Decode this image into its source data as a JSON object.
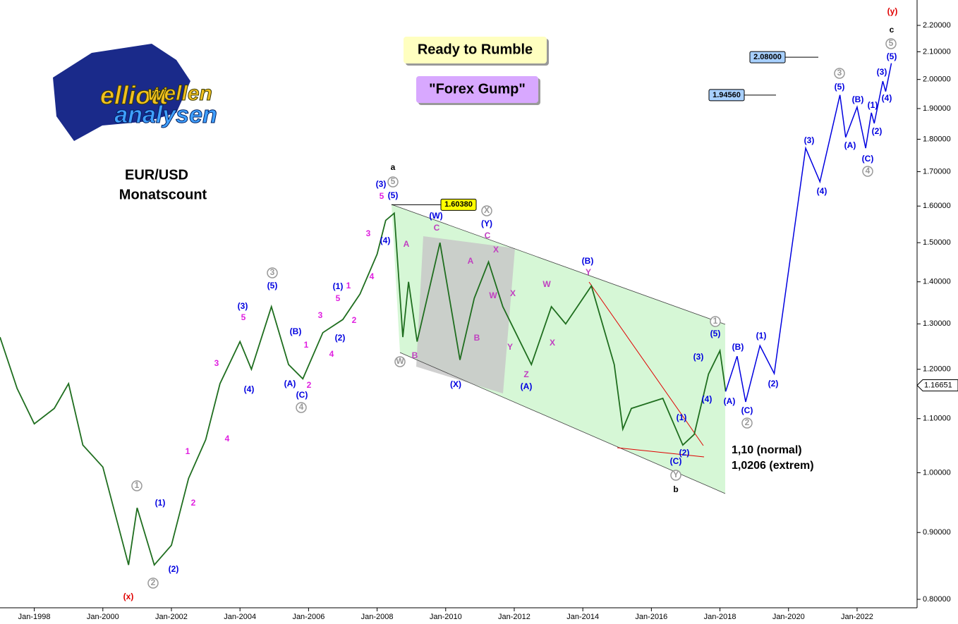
{
  "chart_data": {
    "type": "line",
    "title": "EUR/USD",
    "subtitle": "Monatscount",
    "log_scale": true,
    "xlim": [
      "1997-01",
      "2023-10"
    ],
    "ylim": [
      0.8,
      2.2
    ],
    "xticks": [
      {
        "value": "1998-01",
        "label": "Jan-1998"
      },
      {
        "value": "2000-01",
        "label": "Jan-2000"
      },
      {
        "value": "2002-01",
        "label": "Jan-2002"
      },
      {
        "value": "2004-01",
        "label": "Jan-2004"
      },
      {
        "value": "2006-01",
        "label": "Jan-2006"
      },
      {
        "value": "2008-01",
        "label": "Jan-2008"
      },
      {
        "value": "2010-01",
        "label": "Jan-2010"
      },
      {
        "value": "2012-01",
        "label": "Jan-2012"
      },
      {
        "value": "2014-01",
        "label": "Jan-2014"
      },
      {
        "value": "2016-01",
        "label": "Jan-2016"
      },
      {
        "value": "2018-01",
        "label": "Jan-2018"
      },
      {
        "value": "2020-01",
        "label": "Jan-2020"
      },
      {
        "value": "2022-01",
        "label": "Jan-2022"
      }
    ],
    "yticks": [
      {
        "value": 0.8,
        "label": "0.80000"
      },
      {
        "value": 0.9,
        "label": "0.90000"
      },
      {
        "value": 1.0,
        "label": "1.00000"
      },
      {
        "value": 1.1,
        "label": "1.10000"
      },
      {
        "value": 1.2,
        "label": "1.20000"
      },
      {
        "value": 1.3,
        "label": "1.30000"
      },
      {
        "value": 1.4,
        "label": "1.40000"
      },
      {
        "value": 1.5,
        "label": "1.50000"
      },
      {
        "value": 1.6,
        "label": "1.60000"
      },
      {
        "value": 1.7,
        "label": "1.70000"
      },
      {
        "value": 1.8,
        "label": "1.80000"
      },
      {
        "value": 1.9,
        "label": "1.90000"
      },
      {
        "value": 2.0,
        "label": "2.00000"
      },
      {
        "value": 2.1,
        "label": "2.10000"
      },
      {
        "value": 2.2,
        "label": "2.20000"
      }
    ],
    "series": [
      {
        "color": "#1f6e1f",
        "x": [
          "1997-01",
          "1997-07",
          "1998-01",
          "1998-08",
          "1999-01",
          "1999-06",
          "2000-01",
          "2000-10",
          "2001-01",
          "2001-07",
          "2002-01",
          "2002-07",
          "2003-01",
          "2003-06",
          "2004-01",
          "2004-05",
          "2004-12",
          "2005-06",
          "2005-11",
          "2006-06",
          "2007-01",
          "2007-07",
          "2008-01",
          "2008-04",
          "2008-07",
          "2008-10",
          "2008-12",
          "2009-03",
          "2009-11",
          "2010-06",
          "2010-11",
          "2011-04",
          "2011-09",
          "2012-07",
          "2013-02",
          "2013-07",
          "2014-04",
          "2014-12",
          "2015-03",
          "2015-06",
          "2016-05",
          "2016-12",
          "2017-04",
          "2017-09",
          "2018-01",
          "2018-03"
        ],
        "values": [
          1.27,
          1.16,
          1.09,
          1.12,
          1.17,
          1.05,
          1.01,
          0.85,
          0.94,
          0.85,
          0.88,
          0.99,
          1.06,
          1.17,
          1.26,
          1.2,
          1.34,
          1.21,
          1.18,
          1.28,
          1.31,
          1.37,
          1.47,
          1.56,
          1.58,
          1.27,
          1.4,
          1.26,
          1.5,
          1.22,
          1.36,
          1.45,
          1.34,
          1.21,
          1.34,
          1.3,
          1.39,
          1.21,
          1.08,
          1.12,
          1.14,
          1.05,
          1.07,
          1.19,
          1.24,
          1.154
        ]
      },
      {
        "color": "#0000e0",
        "x": [
          "2018-03",
          "2018-07",
          "2018-10",
          "2019-03",
          "2019-08",
          "2020-07",
          "2020-12",
          "2021-07",
          "2021-09",
          "2022-01",
          "2022-04",
          "2022-06",
          "2022-07",
          "2022-10",
          "2022-11",
          "2023-01"
        ],
        "values": [
          1.154,
          1.228,
          1.133,
          1.251,
          1.191,
          1.772,
          1.67,
          1.946,
          1.806,
          1.905,
          1.772,
          1.886,
          1.851,
          1.994,
          1.958,
          2.058
        ]
      }
    ],
    "price_markers": [
      {
        "value": 1.6038,
        "label": "1.60380",
        "color": "#ffff00"
      },
      {
        "value": 1.9456,
        "label": "1.94560",
        "color": "#a8d0ff"
      },
      {
        "value": 2.08,
        "label": "2.08000",
        "color": "#a8d0ff"
      }
    ],
    "current_price": {
      "value": 1.16651,
      "label": "1.16651"
    },
    "boxes": [
      {
        "text": "Ready to Rumble",
        "color": "#ffffc0"
      },
      {
        "text": "\"Forex Gump\"",
        "color": "#d8a8ff"
      }
    ],
    "notes": [
      "1,10 (normal)",
      "1,0206 (extrem)"
    ],
    "logo": [
      "elliott",
      "wellen",
      "analysen"
    ],
    "annotations": [
      {
        "text": "(x)",
        "color": "#e00000"
      },
      {
        "text": "(y)",
        "color": "#e00000"
      },
      {
        "text": "a",
        "color": "#000000"
      },
      {
        "text": "b",
        "color": "#000000"
      },
      {
        "text": "c",
        "color": "#000000"
      },
      {
        "text": "1",
        "color": "#999999"
      },
      {
        "text": "2",
        "color": "#999999"
      },
      {
        "text": "3",
        "color": "#999999"
      },
      {
        "text": "4",
        "color": "#999999"
      },
      {
        "text": "5",
        "color": "#999999"
      },
      {
        "text": "W",
        "color": "#999999"
      },
      {
        "text": "X",
        "color": "#999999"
      },
      {
        "text": "1",
        "color": "#999999"
      },
      {
        "text": "2",
        "color": "#999999"
      },
      {
        "text": "3",
        "color": "#999999"
      },
      {
        "text": "4",
        "color": "#999999"
      },
      {
        "text": "5",
        "color": "#999999"
      },
      {
        "text": "Y",
        "color": "#999999"
      },
      {
        "text": "(1)",
        "color": "#0000e0"
      },
      {
        "text": "(2)",
        "color": "#0000e0"
      },
      {
        "text": "(3)",
        "color": "#0000e0"
      },
      {
        "text": "(4)",
        "color": "#0000e0"
      },
      {
        "text": "(5)",
        "color": "#0000e0"
      },
      {
        "text": "(A)",
        "color": "#0000e0"
      },
      {
        "text": "(B)",
        "color": "#0000e0"
      },
      {
        "text": "(C)",
        "color": "#0000e0"
      },
      {
        "text": "(1)",
        "color": "#0000e0"
      },
      {
        "text": "(2)",
        "color": "#0000e0"
      },
      {
        "text": "(3)",
        "color": "#0000e0"
      },
      {
        "text": "(5)",
        "color": "#0000e0"
      },
      {
        "text": "(4)",
        "color": "#0000e0"
      },
      {
        "text": "(W)",
        "color": "#0000e0"
      },
      {
        "text": "(Y)",
        "color": "#0000e0"
      },
      {
        "text": "(X)",
        "color": "#0000e0"
      },
      {
        "text": "(A)",
        "color": "#0000e0"
      },
      {
        "text": "(B)",
        "color": "#0000e0"
      },
      {
        "text": "(3)",
        "color": "#0000e0"
      },
      {
        "text": "(4)",
        "color": "#0000e0"
      },
      {
        "text": "(5)",
        "color": "#0000e0"
      },
      {
        "text": "(1)",
        "color": "#0000e0"
      },
      {
        "text": "(2)",
        "color": "#0000e0"
      },
      {
        "text": "(C)",
        "color": "#0000e0"
      },
      {
        "text": "(A)",
        "color": "#0000e0"
      },
      {
        "text": "(B)",
        "color": "#0000e0"
      },
      {
        "text": "(C)",
        "color": "#0000e0"
      },
      {
        "text": "(1)",
        "color": "#0000e0"
      },
      {
        "text": "(2)",
        "color": "#0000e0"
      },
      {
        "text": "(3)",
        "color": "#0000e0"
      },
      {
        "text": "(4)",
        "color": "#0000e0"
      },
      {
        "text": "(5)",
        "color": "#0000e0"
      },
      {
        "text": "(A)",
        "color": "#0000e0"
      },
      {
        "text": "(B)",
        "color": "#0000e0"
      },
      {
        "text": "(C)",
        "color": "#0000e0"
      },
      {
        "text": "(1)",
        "color": "#0000e0"
      },
      {
        "text": "(2)",
        "color": "#0000e0"
      },
      {
        "text": "(3)",
        "color": "#0000e0"
      },
      {
        "text": "(4)",
        "color": "#0000e0"
      },
      {
        "text": "(5)",
        "color": "#0000e0"
      },
      {
        "text": "5",
        "color": "#e020e0"
      },
      {
        "text": "3",
        "color": "#e020e0"
      },
      {
        "text": "1",
        "color": "#e020e0"
      },
      {
        "text": "2",
        "color": "#e020e0"
      },
      {
        "text": "4",
        "color": "#e020e0"
      },
      {
        "text": "1",
        "color": "#e020e0"
      },
      {
        "text": "2",
        "color": "#e020e0"
      },
      {
        "text": "3",
        "color": "#e020e0"
      },
      {
        "text": "4",
        "color": "#e020e0"
      },
      {
        "text": "5",
        "color": "#e020e0"
      },
      {
        "text": "1",
        "color": "#e020e0"
      },
      {
        "text": "2",
        "color": "#e020e0"
      },
      {
        "text": "3",
        "color": "#e020e0"
      },
      {
        "text": "4",
        "color": "#e020e0"
      },
      {
        "text": "5",
        "color": "#e020e0"
      },
      {
        "text": "A",
        "color": "#c040c0"
      },
      {
        "text": "B",
        "color": "#c040c0"
      },
      {
        "text": "C",
        "color": "#c040c0"
      },
      {
        "text": "A",
        "color": "#c040c0"
      },
      {
        "text": "B",
        "color": "#c040c0"
      },
      {
        "text": "C",
        "color": "#c040c0"
      },
      {
        "text": "X",
        "color": "#c040c0"
      },
      {
        "text": "W",
        "color": "#c040c0"
      },
      {
        "text": "X",
        "color": "#c040c0"
      },
      {
        "text": "Y",
        "color": "#c040c0"
      },
      {
        "text": "Z",
        "color": "#c040c0"
      },
      {
        "text": "W",
        "color": "#c040c0"
      },
      {
        "text": "X",
        "color": "#c040c0"
      },
      {
        "text": "Y",
        "color": "#c040c0"
      }
    ]
  }
}
